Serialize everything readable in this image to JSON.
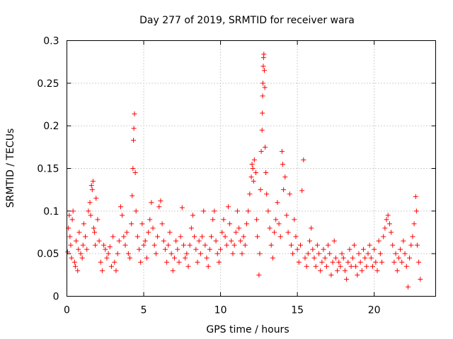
{
  "chart_data": {
    "type": "scatter",
    "title": "Day 277 of 2019, SRMTID for receiver wara",
    "xlabel": "GPS time / hours",
    "ylabel": "SRMTID / TECUs",
    "xlim": [
      0,
      24
    ],
    "ylim": [
      0,
      0.3
    ],
    "x_ticks": [
      0,
      5,
      10,
      15,
      20
    ],
    "x_tick_labels": [
      "0",
      "5",
      "10",
      "15",
      "20"
    ],
    "y_ticks": [
      0,
      0.05,
      0.1,
      0.15,
      0.2,
      0.25,
      0.3
    ],
    "y_tick_labels": [
      "0",
      "0.05",
      "0.1",
      "0.15",
      "0.2",
      "0.25",
      "0.3"
    ],
    "grid": true,
    "marker": "plus",
    "color": "#ff0000",
    "series": [
      {
        "name": "SRMTID",
        "points": [
          [
            0.05,
            0.052
          ],
          [
            0.1,
            0.08
          ],
          [
            0.15,
            0.095
          ],
          [
            0.2,
            0.07
          ],
          [
            0.25,
            0.06
          ],
          [
            0.3,
            0.045
          ],
          [
            0.35,
            0.09
          ],
          [
            0.4,
            0.1
          ],
          [
            0.5,
            0.04
          ],
          [
            0.55,
            0.035
          ],
          [
            0.6,
            0.065
          ],
          [
            0.7,
            0.03
          ],
          [
            0.75,
            0.055
          ],
          [
            0.8,
            0.075
          ],
          [
            0.9,
            0.05
          ],
          [
            1.0,
            0.045
          ],
          [
            1.05,
            0.06
          ],
          [
            1.1,
            0.085
          ],
          [
            1.2,
            0.07
          ],
          [
            1.3,
            0.055
          ],
          [
            1.4,
            0.1
          ],
          [
            1.5,
            0.11
          ],
          [
            1.55,
            0.095
          ],
          [
            1.6,
            0.13
          ],
          [
            1.65,
            0.125
          ],
          [
            1.7,
            0.135
          ],
          [
            1.75,
            0.08
          ],
          [
            1.8,
            0.075
          ],
          [
            1.85,
            0.06
          ],
          [
            1.9,
            0.115
          ],
          [
            2.0,
            0.09
          ],
          [
            2.1,
            0.065
          ],
          [
            2.2,
            0.04
          ],
          [
            2.3,
            0.03
          ],
          [
            2.4,
            0.06
          ],
          [
            2.5,
            0.055
          ],
          [
            2.6,
            0.045
          ],
          [
            2.7,
            0.05
          ],
          [
            2.8,
            0.058
          ],
          [
            2.9,
            0.035
          ],
          [
            3.0,
            0.07
          ],
          [
            3.1,
            0.04
          ],
          [
            3.2,
            0.03
          ],
          [
            3.3,
            0.05
          ],
          [
            3.4,
            0.065
          ],
          [
            3.5,
            0.105
          ],
          [
            3.6,
            0.095
          ],
          [
            3.7,
            0.07
          ],
          [
            3.8,
            0.06
          ],
          [
            3.9,
            0.075
          ],
          [
            4.0,
            0.05
          ],
          [
            4.1,
            0.045
          ],
          [
            4.2,
            0.085
          ],
          [
            4.25,
            0.118
          ],
          [
            4.3,
            0.15
          ],
          [
            4.33,
            0.183
          ],
          [
            4.36,
            0.197
          ],
          [
            4.4,
            0.214
          ],
          [
            4.45,
            0.145
          ],
          [
            4.5,
            0.1
          ],
          [
            4.6,
            0.07
          ],
          [
            4.7,
            0.055
          ],
          [
            4.8,
            0.04
          ],
          [
            4.9,
            0.085
          ],
          [
            5.0,
            0.06
          ],
          [
            5.1,
            0.065
          ],
          [
            5.2,
            0.045
          ],
          [
            5.3,
            0.075
          ],
          [
            5.4,
            0.09
          ],
          [
            5.5,
            0.11
          ],
          [
            5.6,
            0.08
          ],
          [
            5.7,
            0.06
          ],
          [
            5.8,
            0.05
          ],
          [
            5.9,
            0.07
          ],
          [
            6.0,
            0.105
          ],
          [
            6.1,
            0.112
          ],
          [
            6.2,
            0.085
          ],
          [
            6.3,
            0.065
          ],
          [
            6.4,
            0.055
          ],
          [
            6.5,
            0.04
          ],
          [
            6.6,
            0.06
          ],
          [
            6.7,
            0.075
          ],
          [
            6.8,
            0.05
          ],
          [
            6.9,
            0.03
          ],
          [
            7.0,
            0.045
          ],
          [
            7.1,
            0.065
          ],
          [
            7.2,
            0.055
          ],
          [
            7.3,
            0.04
          ],
          [
            7.4,
            0.07
          ],
          [
            7.5,
            0.104
          ],
          [
            7.6,
            0.06
          ],
          [
            7.7,
            0.045
          ],
          [
            7.8,
            0.05
          ],
          [
            7.9,
            0.035
          ],
          [
            8.0,
            0.06
          ],
          [
            8.1,
            0.08
          ],
          [
            8.2,
            0.095
          ],
          [
            8.3,
            0.07
          ],
          [
            8.4,
            0.055
          ],
          [
            8.5,
            0.04
          ],
          [
            8.6,
            0.065
          ],
          [
            8.7,
            0.05
          ],
          [
            8.8,
            0.07
          ],
          [
            8.9,
            0.1
          ],
          [
            9.0,
            0.06
          ],
          [
            9.1,
            0.045
          ],
          [
            9.2,
            0.035
          ],
          [
            9.3,
            0.055
          ],
          [
            9.4,
            0.07
          ],
          [
            9.5,
            0.09
          ],
          [
            9.6,
            0.1
          ],
          [
            9.7,
            0.065
          ],
          [
            9.8,
            0.05
          ],
          [
            9.9,
            0.04
          ],
          [
            10.0,
            0.055
          ],
          [
            10.1,
            0.075
          ],
          [
            10.2,
            0.09
          ],
          [
            10.3,
            0.07
          ],
          [
            10.4,
            0.06
          ],
          [
            10.5,
            0.105
          ],
          [
            10.6,
            0.085
          ],
          [
            10.7,
            0.065
          ],
          [
            10.8,
            0.05
          ],
          [
            10.9,
            0.06
          ],
          [
            11.0,
            0.075
          ],
          [
            11.1,
            0.1
          ],
          [
            11.2,
            0.08
          ],
          [
            11.3,
            0.065
          ],
          [
            11.4,
            0.05
          ],
          [
            11.5,
            0.07
          ],
          [
            11.6,
            0.06
          ],
          [
            11.7,
            0.085
          ],
          [
            11.8,
            0.1
          ],
          [
            11.9,
            0.12
          ],
          [
            12.0,
            0.14
          ],
          [
            12.05,
            0.155
          ],
          [
            12.1,
            0.15
          ],
          [
            12.15,
            0.135
          ],
          [
            12.2,
            0.16
          ],
          [
            12.3,
            0.145
          ],
          [
            12.35,
            0.09
          ],
          [
            12.4,
            0.07
          ],
          [
            12.5,
            0.025
          ],
          [
            12.55,
            0.05
          ],
          [
            12.6,
            0.125
          ],
          [
            12.65,
            0.17
          ],
          [
            12.7,
            0.195
          ],
          [
            12.72,
            0.215
          ],
          [
            12.74,
            0.235
          ],
          [
            12.76,
            0.25
          ],
          [
            12.78,
            0.27
          ],
          [
            12.8,
            0.28
          ],
          [
            12.82,
            0.284
          ],
          [
            12.85,
            0.265
          ],
          [
            12.88,
            0.245
          ],
          [
            12.9,
            0.175
          ],
          [
            12.95,
            0.145
          ],
          [
            13.0,
            0.12
          ],
          [
            13.1,
            0.1
          ],
          [
            13.2,
            0.08
          ],
          [
            13.3,
            0.06
          ],
          [
            13.4,
            0.045
          ],
          [
            13.5,
            0.075
          ],
          [
            13.6,
            0.09
          ],
          [
            13.7,
            0.11
          ],
          [
            13.8,
            0.085
          ],
          [
            13.9,
            0.07
          ],
          [
            14.0,
            0.17
          ],
          [
            14.05,
            0.155
          ],
          [
            14.1,
            0.125
          ],
          [
            14.2,
            0.14
          ],
          [
            14.3,
            0.095
          ],
          [
            14.4,
            0.075
          ],
          [
            14.5,
            0.12
          ],
          [
            14.6,
            0.06
          ],
          [
            14.7,
            0.05
          ],
          [
            14.8,
            0.09
          ],
          [
            14.9,
            0.07
          ],
          [
            15.0,
            0.055
          ],
          [
            15.1,
            0.04
          ],
          [
            15.2,
            0.06
          ],
          [
            15.3,
            0.124
          ],
          [
            15.4,
            0.16
          ],
          [
            15.5,
            0.045
          ],
          [
            15.6,
            0.035
          ],
          [
            15.7,
            0.05
          ],
          [
            15.8,
            0.065
          ],
          [
            15.9,
            0.08
          ],
          [
            16.0,
            0.055
          ],
          [
            16.1,
            0.045
          ],
          [
            16.2,
            0.035
          ],
          [
            16.3,
            0.06
          ],
          [
            16.4,
            0.05
          ],
          [
            16.5,
            0.03
          ],
          [
            16.6,
            0.04
          ],
          [
            16.7,
            0.055
          ],
          [
            16.8,
            0.045
          ],
          [
            16.9,
            0.035
          ],
          [
            17.0,
            0.06
          ],
          [
            17.1,
            0.05
          ],
          [
            17.2,
            0.025
          ],
          [
            17.3,
            0.04
          ],
          [
            17.4,
            0.065
          ],
          [
            17.5,
            0.045
          ],
          [
            17.6,
            0.03
          ],
          [
            17.7,
            0.04
          ],
          [
            17.8,
            0.035
          ],
          [
            17.9,
            0.05
          ],
          [
            18.0,
            0.045
          ],
          [
            18.1,
            0.03
          ],
          [
            18.2,
            0.02
          ],
          [
            18.3,
            0.04
          ],
          [
            18.4,
            0.055
          ],
          [
            18.5,
            0.035
          ],
          [
            18.6,
            0.045
          ],
          [
            18.7,
            0.06
          ],
          [
            18.8,
            0.035
          ],
          [
            18.9,
            0.025
          ],
          [
            19.0,
            0.05
          ],
          [
            19.1,
            0.04
          ],
          [
            19.2,
            0.03
          ],
          [
            19.3,
            0.055
          ],
          [
            19.4,
            0.045
          ],
          [
            19.5,
            0.035
          ],
          [
            19.6,
            0.05
          ],
          [
            19.7,
            0.06
          ],
          [
            19.8,
            0.045
          ],
          [
            19.9,
            0.035
          ],
          [
            20.0,
            0.055
          ],
          [
            20.1,
            0.04
          ],
          [
            20.2,
            0.03
          ],
          [
            20.3,
            0.065
          ],
          [
            20.4,
            0.05
          ],
          [
            20.5,
            0.04
          ],
          [
            20.6,
            0.07
          ],
          [
            20.7,
            0.08
          ],
          [
            20.8,
            0.09
          ],
          [
            20.9,
            0.095
          ],
          [
            21.0,
            0.085
          ],
          [
            21.1,
            0.075
          ],
          [
            21.2,
            0.06
          ],
          [
            21.3,
            0.04
          ],
          [
            21.4,
            0.05
          ],
          [
            21.5,
            0.03
          ],
          [
            21.6,
            0.045
          ],
          [
            21.7,
            0.055
          ],
          [
            21.8,
            0.04
          ],
          [
            21.9,
            0.065
          ],
          [
            22.0,
            0.05
          ],
          [
            22.1,
            0.035
          ],
          [
            22.2,
            0.011
          ],
          [
            22.3,
            0.045
          ],
          [
            22.4,
            0.06
          ],
          [
            22.5,
            0.07
          ],
          [
            22.6,
            0.085
          ],
          [
            22.7,
            0.117
          ],
          [
            22.75,
            0.1
          ],
          [
            22.8,
            0.06
          ],
          [
            22.9,
            0.04
          ],
          [
            23.0,
            0.02
          ]
        ]
      }
    ]
  }
}
